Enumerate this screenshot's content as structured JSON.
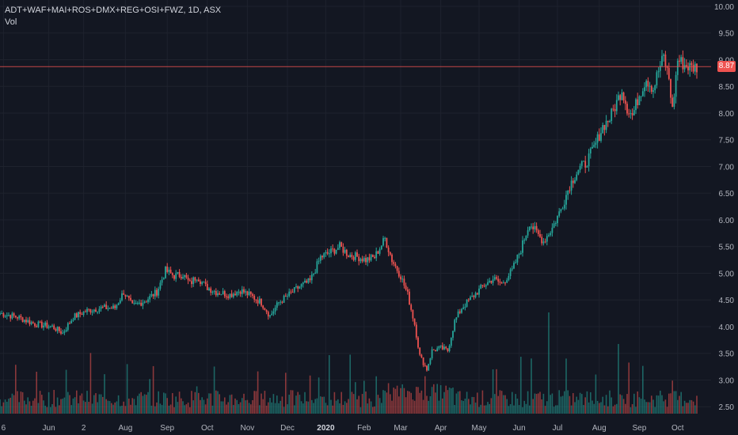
{
  "legend": {
    "title": "ADT+WAF+MAI+ROS+DMX+REG+OSI+FWZ, 1D, ASX",
    "volume_label": "Vol"
  },
  "colors": {
    "background": "#131722",
    "up": "#26a69a",
    "down": "#ef5350",
    "grid": "#1e222d",
    "axis_text": "#b2b5be",
    "price_line": "#ef5350"
  },
  "chart_data": {
    "type": "candlestick",
    "title": "ADT+WAF+MAI+ROS+DMX+REG+OSI+FWZ, 1D, ASX",
    "y_axis": {
      "position": "right",
      "ticks": [
        "10.00",
        "9.50",
        "9.00",
        "8.50",
        "8.00",
        "7.50",
        "7.00",
        "6.50",
        "6.00",
        "5.50",
        "5.00",
        "4.50",
        "4.00",
        "3.50",
        "3.00",
        "2.50"
      ],
      "range": [
        2.37,
        10.0
      ]
    },
    "x_axis": {
      "ticks": [
        {
          "label": "6",
          "index": 2
        },
        {
          "label": "Jun",
          "index": 28
        },
        {
          "label": "2",
          "index": 48
        },
        {
          "label": "Aug",
          "index": 72
        },
        {
          "label": "Sep",
          "index": 96
        },
        {
          "label": "Oct",
          "index": 119
        },
        {
          "label": "Nov",
          "index": 142
        },
        {
          "label": "Dec",
          "index": 165
        },
        {
          "label": "2020",
          "index": 187
        },
        {
          "label": "Feb",
          "index": 209
        },
        {
          "label": "Mar",
          "index": 230
        },
        {
          "label": "Apr",
          "index": 253
        },
        {
          "label": "May",
          "index": 275
        },
        {
          "label": "Jun",
          "index": 298
        },
        {
          "label": "Jul",
          "index": 320
        },
        {
          "label": "Aug",
          "index": 344
        },
        {
          "label": "Sep",
          "index": 367
        },
        {
          "label": "Oct",
          "index": 389
        }
      ]
    },
    "last_price": 8.87,
    "grid": true,
    "series": [
      {
        "name": "Price",
        "anchors": [
          [
            0,
            4.25
          ],
          [
            10,
            4.18
          ],
          [
            20,
            4.05
          ],
          [
            30,
            4.0
          ],
          [
            36,
            3.88
          ],
          [
            42,
            4.18
          ],
          [
            50,
            4.3
          ],
          [
            58,
            4.35
          ],
          [
            66,
            4.35
          ],
          [
            71,
            4.65
          ],
          [
            76,
            4.38
          ],
          [
            84,
            4.5
          ],
          [
            90,
            4.65
          ],
          [
            95,
            5.05
          ],
          [
            100,
            4.95
          ],
          [
            105,
            4.98
          ],
          [
            109,
            4.8
          ],
          [
            113,
            4.95
          ],
          [
            118,
            4.75
          ],
          [
            124,
            4.65
          ],
          [
            132,
            4.6
          ],
          [
            138,
            4.68
          ],
          [
            144,
            4.58
          ],
          [
            150,
            4.45
          ],
          [
            155,
            4.2
          ],
          [
            160,
            4.45
          ],
          [
            166,
            4.6
          ],
          [
            172,
            4.75
          ],
          [
            178,
            4.85
          ],
          [
            184,
            5.3
          ],
          [
            190,
            5.4
          ],
          [
            195,
            5.5
          ],
          [
            200,
            5.35
          ],
          [
            206,
            5.3
          ],
          [
            210,
            5.25
          ],
          [
            215,
            5.3
          ],
          [
            221,
            5.65
          ],
          [
            225,
            5.25
          ],
          [
            230,
            4.95
          ],
          [
            234,
            4.6
          ],
          [
            238,
            4.05
          ],
          [
            241,
            3.45
          ],
          [
            245,
            3.2
          ],
          [
            248,
            3.55
          ],
          [
            253,
            3.6
          ],
          [
            257,
            3.55
          ],
          [
            261,
            4.1
          ],
          [
            265,
            4.35
          ],
          [
            271,
            4.55
          ],
          [
            277,
            4.75
          ],
          [
            283,
            4.9
          ],
          [
            288,
            4.8
          ],
          [
            294,
            5.05
          ],
          [
            299,
            5.45
          ],
          [
            304,
            5.95
          ],
          [
            308,
            5.75
          ],
          [
            312,
            5.6
          ],
          [
            317,
            5.85
          ],
          [
            322,
            6.2
          ],
          [
            327,
            6.65
          ],
          [
            332,
            6.95
          ],
          [
            336,
            7.05
          ],
          [
            341,
            7.35
          ],
          [
            346,
            7.75
          ],
          [
            350,
            7.9
          ],
          [
            354,
            8.2
          ],
          [
            357,
            8.45
          ],
          [
            360,
            8.1
          ],
          [
            363,
            7.95
          ],
          [
            367,
            8.35
          ],
          [
            371,
            8.65
          ],
          [
            375,
            8.45
          ],
          [
            378,
            8.8
          ],
          [
            381,
            9.05
          ],
          [
            384,
            8.65
          ],
          [
            386,
            8.05
          ],
          [
            389,
            9.0
          ],
          [
            393,
            8.9
          ],
          [
            397,
            8.85
          ],
          [
            400,
            8.87
          ]
        ]
      },
      {
        "name": "Vol",
        "peak_index": 315
      }
    ]
  }
}
